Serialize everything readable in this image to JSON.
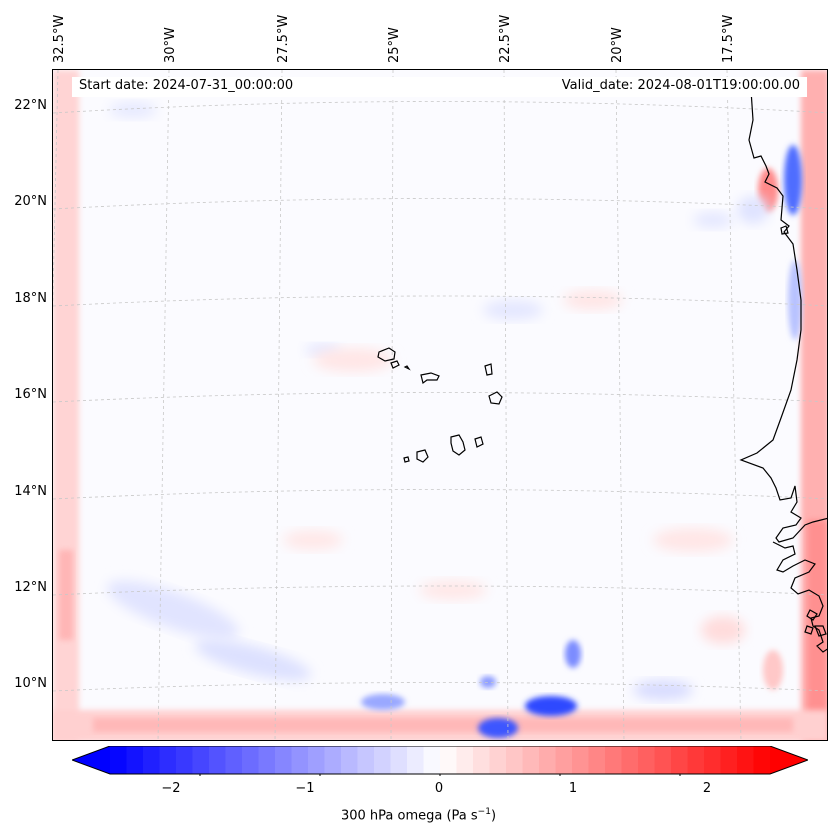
{
  "header": {
    "start_date": "Start date: 2024-07-31_00:00:00",
    "valid_date": "Valid_date: 2024-08-01T19:00:00.00"
  },
  "axes": {
    "longitude_labels": [
      "32.5°W",
      "30°W",
      "27.5°W",
      "25°W",
      "22.5°W",
      "20°W",
      "17.5°W"
    ],
    "latitude_labels": [
      "22°N",
      "20°N",
      "18°N",
      "16°N",
      "14°N",
      "12°N",
      "10°N"
    ]
  },
  "colorbar": {
    "label_prefix": "300 hPa omega (Pa s",
    "label_exp": "−1",
    "label_suffix": ")",
    "tick_labels": [
      "−2",
      "−1",
      "0",
      "1",
      "2"
    ],
    "tick_values": [
      -2,
      -1,
      0,
      1,
      2
    ],
    "min": -2.75,
    "max": 2.75,
    "negative_color": "#0000ff",
    "zero_color": "#ffffff",
    "positive_color": "#ff0000"
  },
  "map": {
    "coastline_color": "#000000",
    "gridline_color": "#c8c8c8",
    "background_color": "#fbfbff"
  }
}
